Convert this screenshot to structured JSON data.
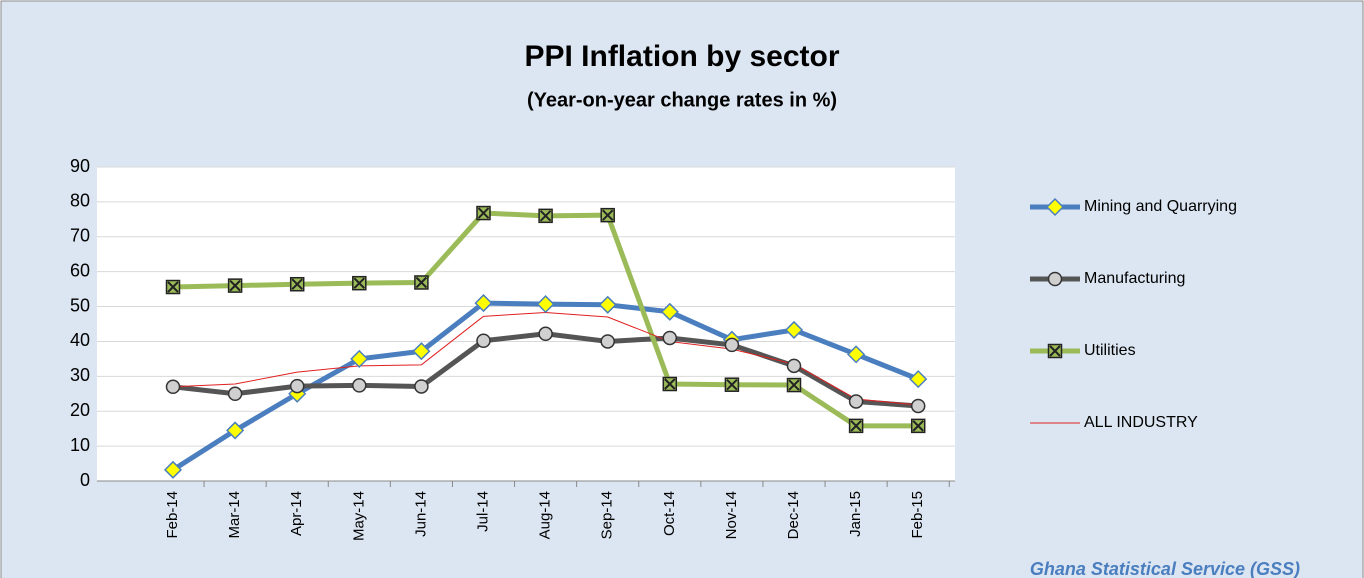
{
  "chart_data": {
    "type": "line",
    "title": "PPI Inflation by sector",
    "subtitle": "(Year-on-year change rates in %)",
    "source": "Ghana Statistical Service (GSS)",
    "categories": [
      "Feb-14",
      "Mar-14",
      "Apr-14",
      "May-14",
      "Jun-14",
      "Jul-14",
      "Aug-14",
      "Sep-14",
      "Oct-14",
      "Nov-14",
      "Dec-14",
      "Jan-15",
      "Feb-15"
    ],
    "series": [
      {
        "name": "Mining and Quarrying",
        "color": "#4a7ebf",
        "marker": "diamond",
        "values": [
          3.2,
          14.5,
          25,
          35,
          37.2,
          51,
          50.7,
          50.5,
          48.5,
          40.5,
          43.3,
          36.3,
          29.2
        ]
      },
      {
        "name": "Manufacturing",
        "color": "#555555",
        "marker": "circle",
        "values": [
          27,
          25,
          27.2,
          27.4,
          27.1,
          40.2,
          42.2,
          40,
          41,
          39,
          33,
          22.8,
          21.5
        ]
      },
      {
        "name": "Utilities",
        "color": "#9bbb59",
        "marker": "square-x",
        "values": [
          55.6,
          56,
          56.4,
          56.7,
          56.9,
          76.8,
          76,
          76.2,
          27.8,
          27.6,
          27.5,
          15.8,
          15.8
        ]
      },
      {
        "name": "ALL INDUSTRY",
        "color": "#e02020",
        "marker": "none",
        "values": [
          27,
          27.8,
          31.2,
          33,
          33.3,
          47.2,
          48.3,
          47,
          40,
          37.8,
          33.5,
          23.5,
          21.8
        ]
      }
    ],
    "ylim": [
      0,
      90
    ],
    "yticks": [
      0,
      10,
      20,
      30,
      40,
      50,
      60,
      70,
      80,
      90
    ],
    "grid": true,
    "legend": "right"
  }
}
